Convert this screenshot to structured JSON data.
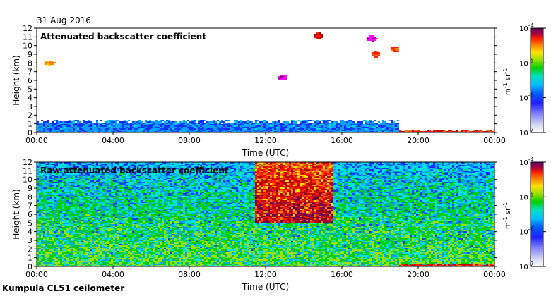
{
  "header": {
    "date": "31 Aug 2016"
  },
  "footer": {
    "instrument": "Kumpula CL51 ceilometer"
  },
  "colormap": [
    "#ffffff",
    "#d8d8f0",
    "#8080ff",
    "#2020ff",
    "#0040ff",
    "#00a0ff",
    "#00e0e0",
    "#00d000",
    "#a0e000",
    "#ffe000",
    "#ff8000",
    "#ff2000",
    "#c00000",
    "#600060",
    "#ff00ff"
  ],
  "chart_data": [
    {
      "type": "heatmap",
      "title": "Attenuated backscatter coefficient",
      "xlabel": "Time (UTC)",
      "ylabel": "Height (km)",
      "x_ticks": [
        "00:00",
        "04:00",
        "08:00",
        "12:00",
        "16:00",
        "20:00",
        "00:00"
      ],
      "xlim_hours": [
        0,
        24
      ],
      "y_ticks": [
        0,
        1,
        2,
        3,
        4,
        5,
        6,
        7,
        8,
        9,
        10,
        11,
        12
      ],
      "ylim_km": [
        0,
        12
      ],
      "colorbar": {
        "unit_base": "m",
        "unit_exp1": "-1",
        "unit_sr": " sr",
        "unit_exp2": "-1",
        "log_scale": true,
        "range": [
          1e-07,
          0.0001
        ],
        "ticks": [
          {
            "base": "10",
            "exp": "-4",
            "value": 0.0001
          },
          {
            "base": "10",
            "exp": "-5",
            "value": 1e-05
          },
          {
            "base": "10",
            "exp": "-6",
            "value": 1e-06
          },
          {
            "base": "10",
            "exp": "-7",
            "value": 1e-07
          }
        ]
      },
      "features": [
        {
          "desc": "boundary layer",
          "t_start": 0,
          "t_end": 19,
          "h_bottom": 0,
          "h_top": 1.5,
          "level": 1e-06
        },
        {
          "desc": "near-surface layer after sunset",
          "t_start": 19,
          "t_end": 24,
          "h_bottom": 0,
          "h_top": 0.3,
          "level": 3e-05
        },
        {
          "desc": "cloud",
          "t": 0.7,
          "h": 8.0,
          "level": 1e-05
        },
        {
          "desc": "cloud",
          "t": 12.9,
          "h": 6.3,
          "level": 0.0001
        },
        {
          "desc": "cloud",
          "t": 14.8,
          "h": 11.1,
          "level": 3e-05
        },
        {
          "desc": "cloud",
          "t": 17.6,
          "h": 10.8,
          "level": 0.0001
        },
        {
          "desc": "cloud",
          "t": 17.8,
          "h": 9.0,
          "level": 2e-05
        },
        {
          "desc": "cloud",
          "t": 18.8,
          "h": 9.6,
          "level": 2e-05
        }
      ]
    },
    {
      "type": "heatmap",
      "title": "Raw attenuated backscatter coefficient",
      "xlabel": "Time (UTC)",
      "ylabel": "Height (km)",
      "x_ticks": [
        "00:00",
        "04:00",
        "08:00",
        "12:00",
        "16:00",
        "20:00",
        "00:00"
      ],
      "xlim_hours": [
        0,
        24
      ],
      "y_ticks": [
        0,
        1,
        2,
        3,
        4,
        5,
        6,
        7,
        8,
        9,
        10,
        11,
        12
      ],
      "ylim_km": [
        0,
        12
      ],
      "colorbar": {
        "unit_base": "m",
        "unit_exp1": "-1",
        "unit_sr": " sr",
        "unit_exp2": "-1",
        "log_scale": true,
        "range": [
          1e-07,
          0.0001
        ],
        "ticks": [
          {
            "base": "10",
            "exp": "-4",
            "value": 0.0001
          },
          {
            "base": "10",
            "exp": "-5",
            "value": 1e-05
          },
          {
            "base": "10",
            "exp": "-6",
            "value": 1e-06
          },
          {
            "base": "10",
            "exp": "-7",
            "value": 1e-07
          }
        ]
      },
      "features": [
        {
          "desc": "noise background",
          "t_start": 0,
          "t_end": 24,
          "h_bottom": 0,
          "h_top": 12,
          "level": 2e-06
        },
        {
          "desc": "enhanced signal",
          "t_start": 11.5,
          "t_end": 15.5,
          "h_bottom": 5,
          "h_top": 12,
          "level": 3e-05
        },
        {
          "desc": "near-surface layer after sunset",
          "t_start": 19,
          "t_end": 24,
          "h_bottom": 0,
          "h_top": 0.3,
          "level": 3e-05
        }
      ]
    }
  ]
}
